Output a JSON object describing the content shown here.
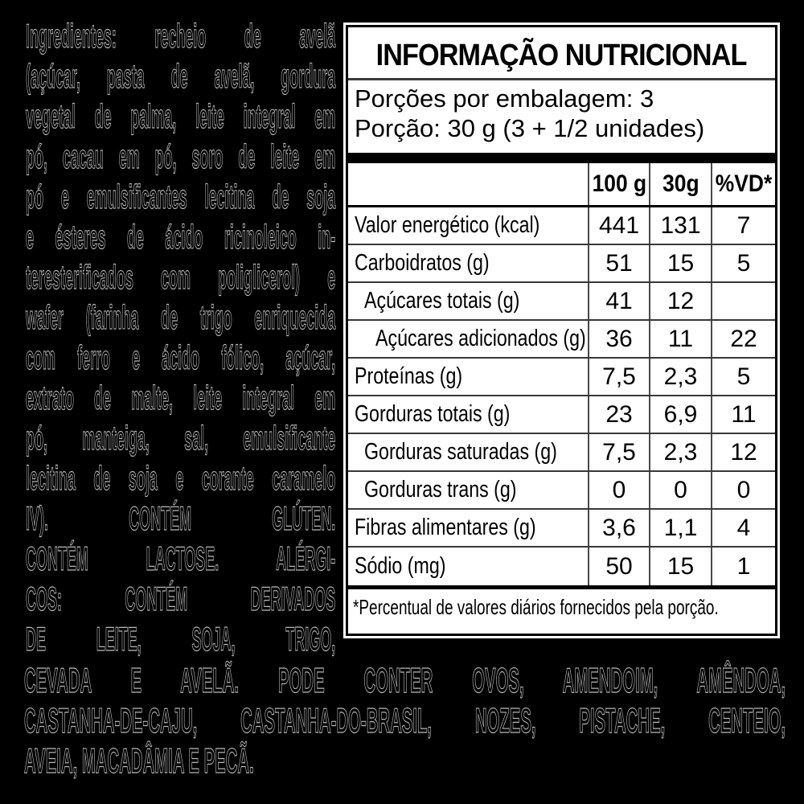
{
  "colors": {
    "page_bg": "#000000",
    "label_bg": "#ffffff",
    "label_text": "#000000",
    "ingredients_outline": "#b8b8b8"
  },
  "ingredients": {
    "column_lines": [
      "Ingredientes: recheio de avelã",
      "(açúcar, pasta de avelã, gordura",
      "vegetal de palma, leite integral em",
      "pó, cacau em pó, soro de leite em",
      "pó e emulsificantes lecitina de soja",
      "e ésteres de ácido ricinoleico in-",
      "teresterificados com poliglicerol) e",
      "wafer (farinha de trigo enriquecida",
      "com ferro e ácido fólico, açúcar,",
      "extrato de malte, leite integral em",
      "pó, manteiga, sal, emulsificante",
      "lecitina de soja e corante caramelo",
      "IV). CONTÉM GLÚTEN.",
      "CONTÉM LACTOSE. ALÉRGI-",
      "COS: CONTÉM DERIVADOS",
      "DE LEITE, SOJA, TRIGO,"
    ],
    "bottom_lines": [
      "CEVADA E AVELÃ. PODE CONTER OVOS, AMENDOIM, AMÊNDOA,",
      "CASTANHA-DE-CAJU, CASTANHA-DO-BRASIL, NOZES, PISTACHE, CENTEIO,",
      "AVEIA, MACADÂMIA E PECÃ."
    ]
  },
  "nutrition_table": {
    "title": "INFORMAÇÃO NUTRICIONAL",
    "servings_line": "Porções por embalagem: 3",
    "portion_line": "Porção: 30 g (3 + 1/2 unidades)",
    "columns": [
      "100 g",
      "30g",
      "%VD*"
    ],
    "rows": [
      {
        "label": "Valor energético (kcal)",
        "indent": 0,
        "v100": "441",
        "v30": "131",
        "vd": "7"
      },
      {
        "label": "Carboidratos (g)",
        "indent": 0,
        "v100": "51",
        "v30": "15",
        "vd": "5"
      },
      {
        "label": "Açúcares totais (g)",
        "indent": 1,
        "v100": "41",
        "v30": "12",
        "vd": ""
      },
      {
        "label": "Açúcares adicionados (g)",
        "indent": 2,
        "v100": "36",
        "v30": "11",
        "vd": "22"
      },
      {
        "label": "Proteínas (g)",
        "indent": 0,
        "v100": "7,5",
        "v30": "2,3",
        "vd": "5"
      },
      {
        "label": "Gorduras totais (g)",
        "indent": 0,
        "v100": "23",
        "v30": "6,9",
        "vd": "11"
      },
      {
        "label": "Gorduras saturadas (g)",
        "indent": 1,
        "v100": "7,5",
        "v30": "2,3",
        "vd": "12"
      },
      {
        "label": "Gorduras trans (g)",
        "indent": 1,
        "v100": "0",
        "v30": "0",
        "vd": "0"
      },
      {
        "label": "Fibras alimentares (g)",
        "indent": 0,
        "v100": "3,6",
        "v30": "1,1",
        "vd": "4"
      },
      {
        "label": "Sódio (mg)",
        "indent": 0,
        "v100": "50",
        "v30": "15",
        "vd": "1"
      }
    ],
    "footnote": "*Percentual de valores diários fornecidos pela porção."
  }
}
